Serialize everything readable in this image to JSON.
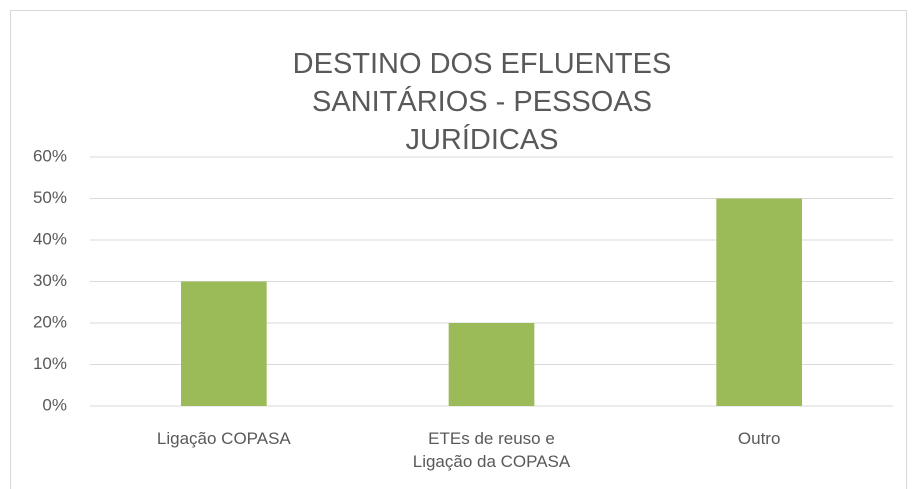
{
  "chart_data": {
    "type": "bar",
    "title": "DESTINO DOS EFLUENTES SANITÁRIOS - PESSOAS JURÍDICAS",
    "categories": [
      "Ligação COPASA",
      "ETEs de reuso e Ligação da COPASA",
      "Outro"
    ],
    "values": [
      30,
      20,
      50
    ],
    "color": "#9bbb59",
    "ylim": [
      0,
      60
    ],
    "yticks": [
      {
        "value": 0,
        "label": "0%"
      },
      {
        "value": 10,
        "label": "10%"
      },
      {
        "value": 20,
        "label": "20%"
      },
      {
        "value": 30,
        "label": "30%"
      },
      {
        "value": 40,
        "label": "40%"
      },
      {
        "value": 50,
        "label": "50%"
      },
      {
        "value": 60,
        "label": "60%"
      }
    ],
    "grid": true
  }
}
